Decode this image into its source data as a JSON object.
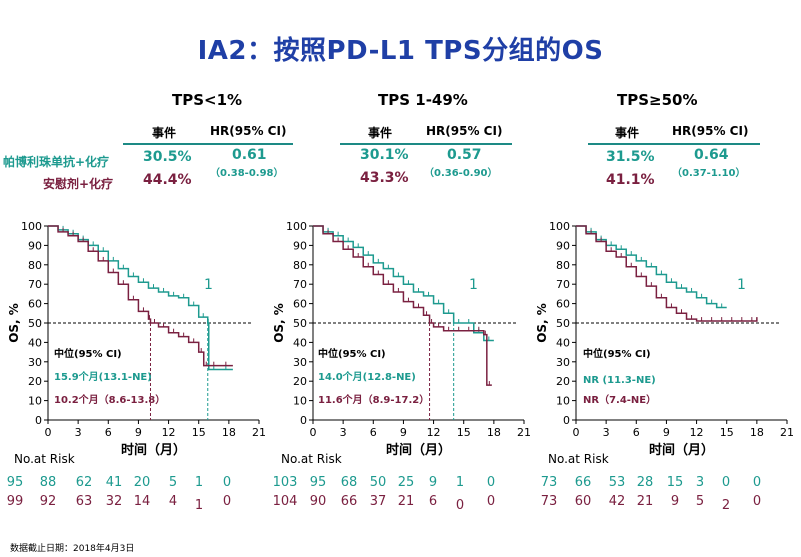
{
  "title": "IA2：按照PD-L1 TPS分组的OS",
  "header_labels": {
    "events": "事件",
    "hr": "HR(95% CI)"
  },
  "arms": [
    {
      "name": "帕博利珠单抗+化疗",
      "color": "#1d9a8f"
    },
    {
      "name": "安慰剂+化疗",
      "color": "#7a2040"
    }
  ],
  "risk_label": "No.at Risk",
  "footnote": "数据截止日期：2018年4月3日",
  "panels": [
    {
      "label": "TPS<1%",
      "events": [
        "30.5%",
        "44.4%"
      ],
      "hr": "0.61",
      "ci": "（0.38-0.98）",
      "median_header": "中位(95% CI)",
      "medians": [
        "15.9个月(13.1-NE)",
        "10.2个月（8.6-13.8）"
      ],
      "risk": [
        [
          "95",
          "88",
          "62",
          "41",
          "20",
          "5",
          "1",
          "0"
        ],
        [
          "99",
          "92",
          "63",
          "32",
          "14",
          "4",
          "1",
          "0"
        ]
      ]
    },
    {
      "label": "TPS 1-49%",
      "events": [
        "30.1%",
        "43.3%"
      ],
      "hr": "0.57",
      "ci": "（0.36-0.90）",
      "median_header": "中位(95% CI)",
      "medians": [
        "14.0个月(12.8-NE)",
        "11.6个月（8.9-17.2）"
      ],
      "risk": [
        [
          "103",
          "95",
          "68",
          "50",
          "25",
          "9",
          "1",
          "0"
        ],
        [
          "104",
          "90",
          "66",
          "37",
          "21",
          "6",
          "0",
          "0"
        ]
      ]
    },
    {
      "label": "TPS≥50%",
      "events": [
        "31.5%",
        "41.1%"
      ],
      "hr": "0.64",
      "ci": "（0.37-1.10）",
      "median_header": "中位(95% CI)",
      "medians": [
        "NR (11.3-NE)",
        "NR（7.4-NE）"
      ],
      "risk": [
        [
          "73",
          "66",
          "53",
          "28",
          "15",
          "3",
          "0",
          "0"
        ],
        [
          "73",
          "60",
          "42",
          "21",
          "9",
          "5",
          "2",
          "0"
        ]
      ]
    }
  ],
  "chart_data": [
    {
      "type": "line",
      "title": "TPS<1%",
      "xlabel": "时间（月）",
      "ylabel": "OS, %",
      "xlim": [
        0,
        21
      ],
      "ylim": [
        0,
        100
      ],
      "xticks": [
        0,
        3,
        6,
        9,
        12,
        15,
        18,
        21
      ],
      "yticks": [
        0,
        10,
        20,
        30,
        40,
        50,
        60,
        70,
        80,
        90,
        100
      ],
      "reference_line": 50,
      "annotation": "1",
      "series": [
        {
          "name": "帕博利珠单抗+化疗",
          "median_x": 15.9,
          "x": [
            0,
            1,
            2,
            3,
            4,
            5,
            6,
            7,
            8,
            9,
            10,
            11,
            12,
            13,
            14,
            15,
            15.9,
            16,
            17,
            18.4
          ],
          "y": [
            100,
            98,
            96,
            93,
            90,
            87,
            82,
            78,
            74,
            71,
            68,
            66,
            64,
            63,
            59,
            53,
            50,
            26,
            26,
            26
          ]
        },
        {
          "name": "安慰剂+化疗",
          "median_x": 10.2,
          "x": [
            0,
            1,
            2,
            3,
            4,
            5,
            6,
            7,
            8,
            9,
            10,
            10.2,
            11,
            12,
            13,
            14,
            15,
            15.5,
            16,
            17,
            18.4
          ],
          "y": [
            100,
            97,
            95,
            92,
            87,
            82,
            76,
            70,
            62,
            56,
            52,
            50,
            48,
            45,
            43,
            40,
            35,
            28,
            28,
            28,
            28
          ]
        }
      ]
    },
    {
      "type": "line",
      "title": "TPS 1-49%",
      "xlabel": "时间（月）",
      "ylabel": "OS, %",
      "xlim": [
        0,
        21
      ],
      "ylim": [
        0,
        100
      ],
      "xticks": [
        0,
        3,
        6,
        9,
        12,
        15,
        18,
        21
      ],
      "yticks": [
        0,
        10,
        20,
        30,
        40,
        50,
        60,
        70,
        80,
        90,
        100
      ],
      "reference_line": 50,
      "annotation": "1",
      "series": [
        {
          "name": "帕博利珠单抗+化疗",
          "median_x": 14.0,
          "x": [
            0,
            1,
            2,
            3,
            4,
            5,
            6,
            7,
            8,
            9,
            10,
            11,
            12,
            13,
            14,
            15,
            16,
            17,
            18
          ],
          "y": [
            100,
            97,
            95,
            92,
            89,
            85,
            81,
            78,
            74,
            70,
            66,
            64,
            60,
            55,
            50,
            50,
            45,
            41,
            41
          ]
        },
        {
          "name": "安慰剂+化疗",
          "median_x": 11.6,
          "x": [
            0,
            1,
            2,
            3,
            4,
            5,
            6,
            7,
            8,
            9,
            10,
            11,
            11.6,
            12,
            13,
            14,
            15,
            16,
            17,
            17.3,
            17.8
          ],
          "y": [
            100,
            96,
            92,
            88,
            84,
            79,
            75,
            70,
            66,
            61,
            58,
            54,
            50,
            48,
            46,
            46,
            46,
            46,
            44,
            18,
            18
          ]
        }
      ]
    },
    {
      "type": "line",
      "title": "TPS≥50%",
      "xlabel": "时间（月）",
      "ylabel": "OS, %",
      "xlim": [
        0,
        21
      ],
      "ylim": [
        0,
        100
      ],
      "xticks": [
        0,
        3,
        6,
        9,
        12,
        15,
        18,
        21
      ],
      "yticks": [
        0,
        10,
        20,
        30,
        40,
        50,
        60,
        70,
        80,
        90,
        100
      ],
      "reference_line": 50,
      "annotation": "1",
      "series": [
        {
          "name": "帕博利珠单抗+化疗",
          "x": [
            0,
            1,
            2,
            3,
            4,
            5,
            6,
            7,
            8,
            9,
            10,
            11,
            12,
            13,
            14,
            15
          ],
          "y": [
            100,
            97,
            93,
            90,
            88,
            85,
            82,
            79,
            75,
            71,
            68,
            66,
            63,
            60,
            58,
            58
          ]
        },
        {
          "name": "安慰剂+化疗",
          "x": [
            0,
            1,
            2,
            3,
            4,
            5,
            6,
            7,
            8,
            9,
            10,
            11,
            12,
            13,
            14,
            15,
            16,
            17,
            18
          ],
          "y": [
            100,
            96,
            92,
            87,
            84,
            79,
            74,
            69,
            63,
            58,
            55,
            52,
            51,
            51,
            51,
            51,
            51,
            51,
            53
          ]
        }
      ]
    }
  ]
}
